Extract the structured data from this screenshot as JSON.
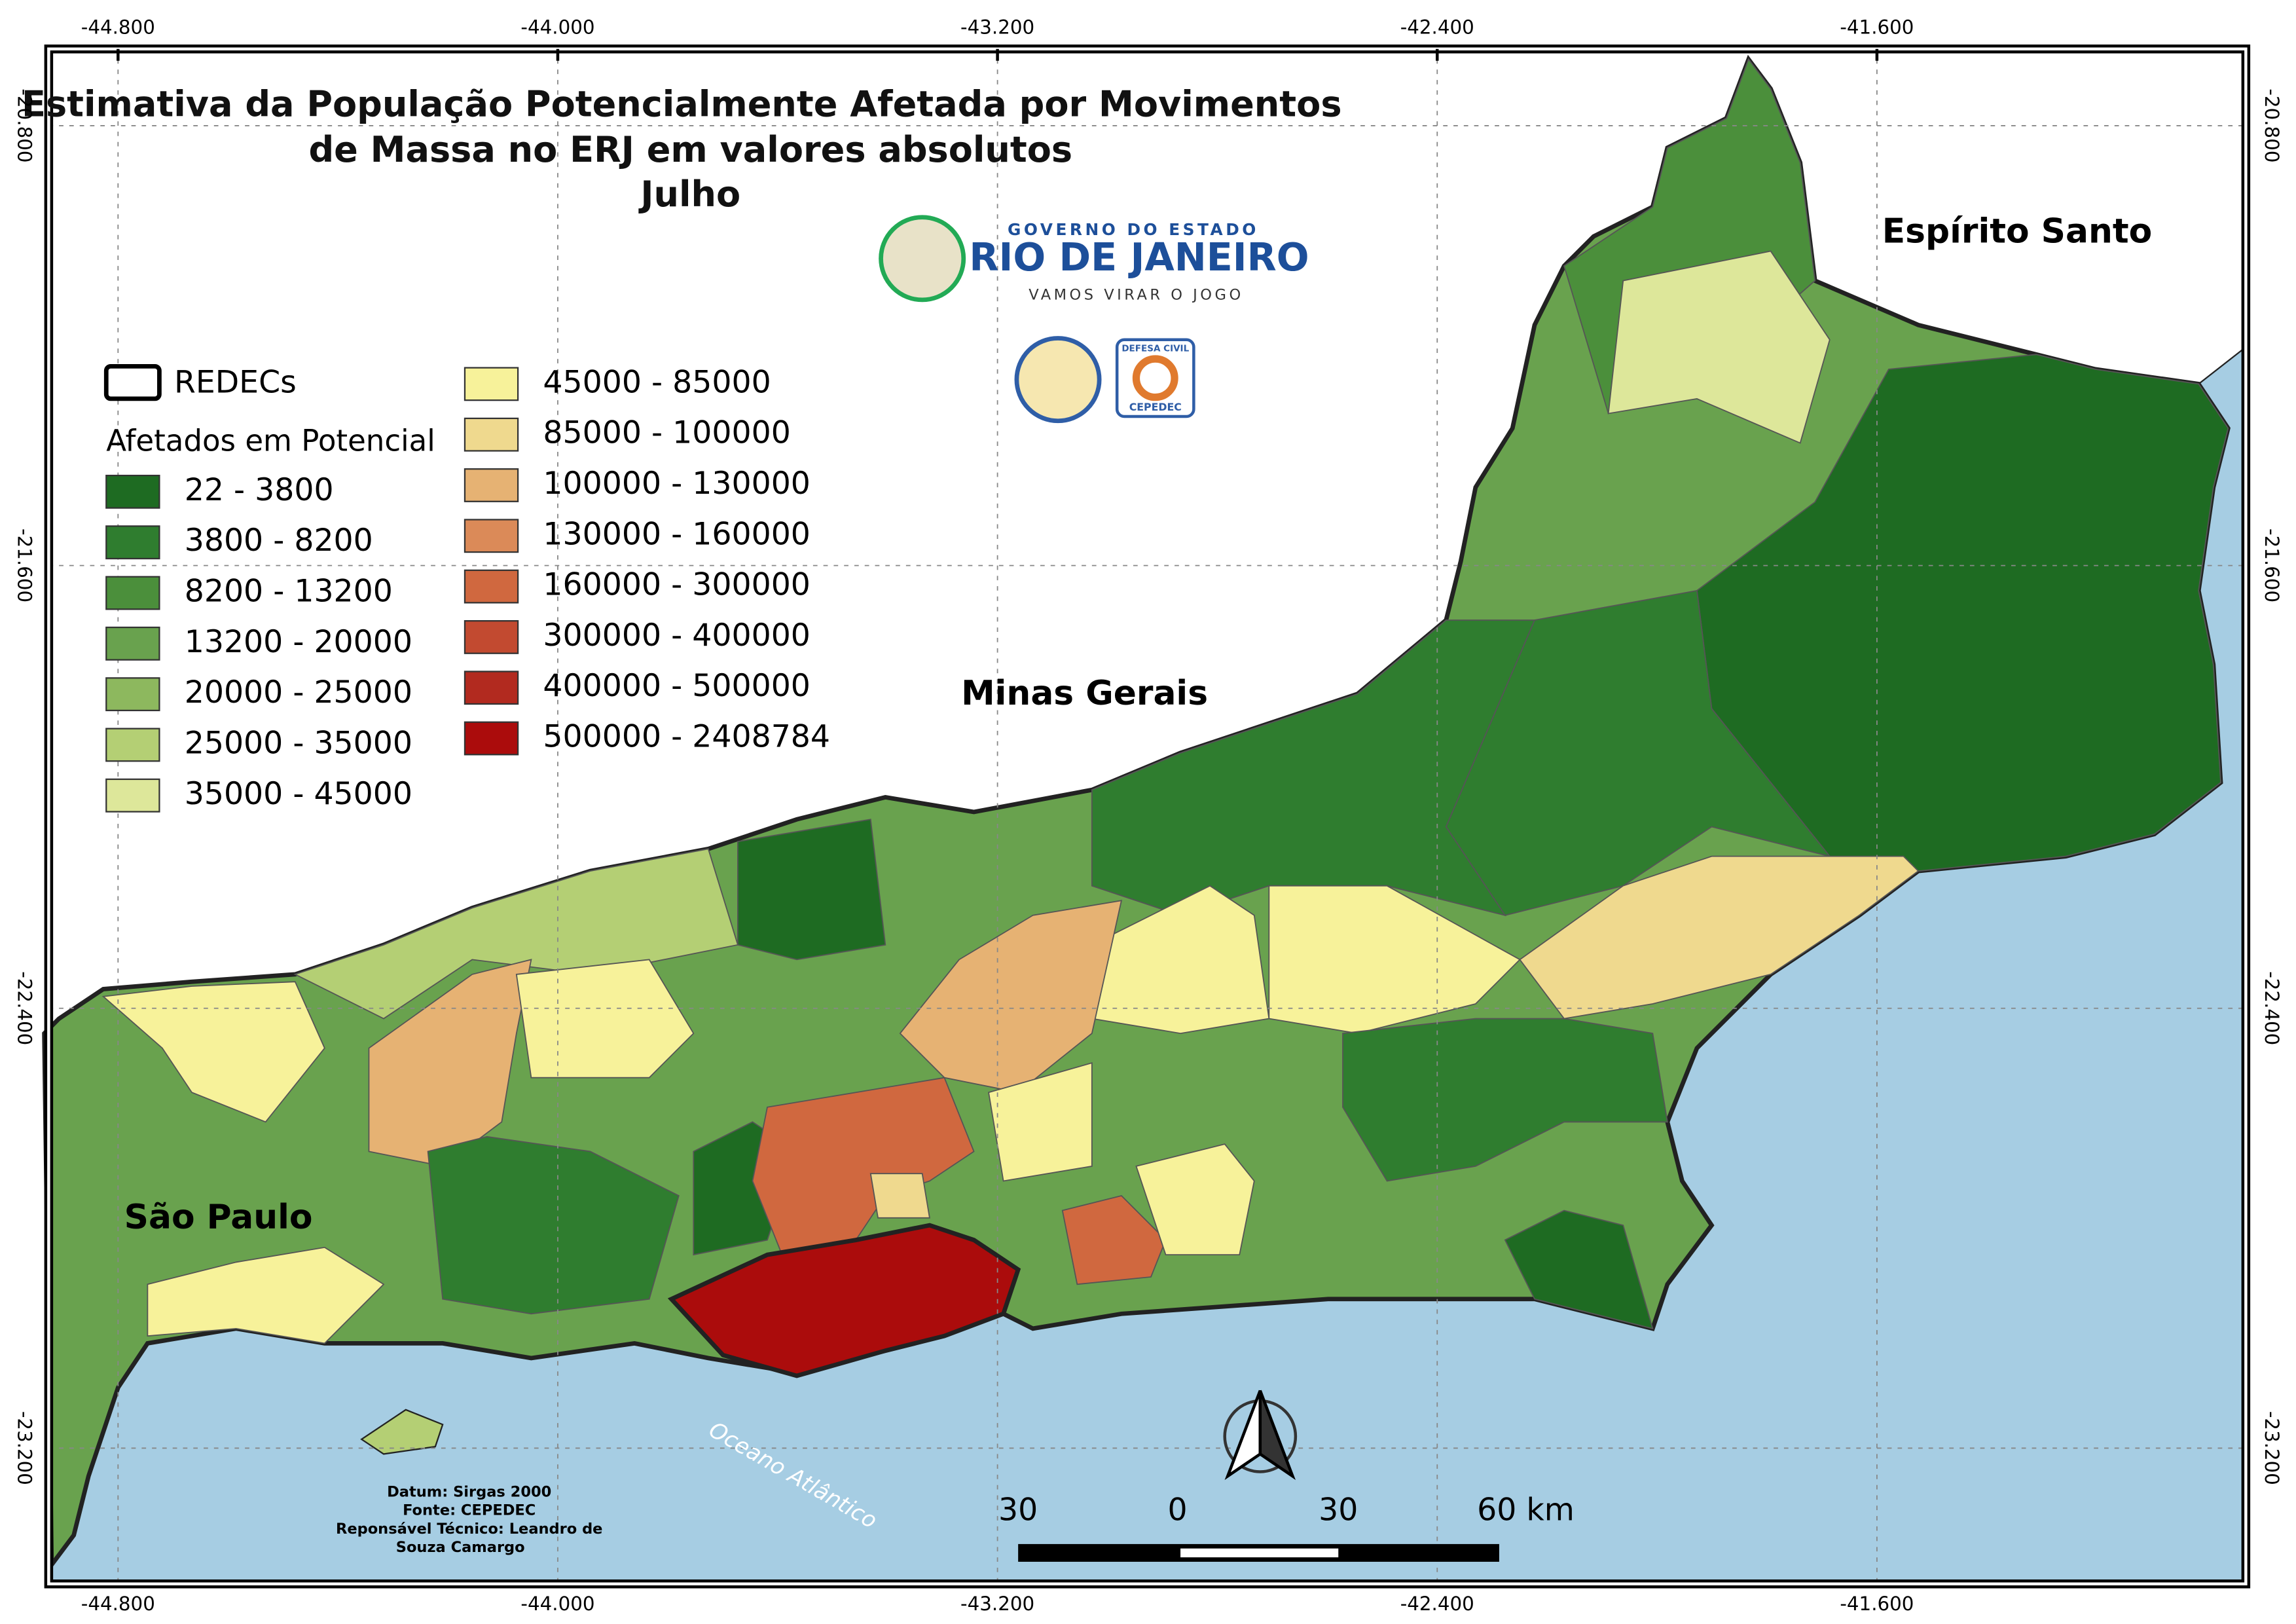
{
  "header": {
    "title_lines": [
      "Estimativa da População Potencialmente Afetada por Movimentos",
      "de Massa no ERJ em valores absolutos",
      "Julho"
    ]
  },
  "logos": {
    "gov_top": "GOVERNO DO ESTADO",
    "gov_main": "RIO DE JANEIRO",
    "gov_slogan": "VAMOS VIRAR O JOGO",
    "defesa": "DEFESA CIVIL",
    "cepedec": "CEPEDEC"
  },
  "legend": {
    "boundary": "REDECs",
    "heading": "Afetados em Potencial",
    "classes": [
      {
        "label": "22 - 3800",
        "color": "#1e6b22"
      },
      {
        "label": "3800 - 8200",
        "color": "#2f7d2f"
      },
      {
        "label": "8200 - 13200",
        "color": "#4b8f3b"
      },
      {
        "label": "13200 - 20000",
        "color": "#69a24e"
      },
      {
        "label": "20000 - 25000",
        "color": "#8db85e"
      },
      {
        "label": "25000 - 35000",
        "color": "#b4cf74"
      },
      {
        "label": "35000 - 45000",
        "color": "#dde79a"
      },
      {
        "label": "45000 - 85000",
        "color": "#f7f29a"
      },
      {
        "label": "85000 - 100000",
        "color": "#efd98e"
      },
      {
        "label": "100000 - 130000",
        "color": "#e6b273"
      },
      {
        "label": "130000 - 160000",
        "color": "#db8a58"
      },
      {
        "label": "160000 - 300000",
        "color": "#d0683f"
      },
      {
        "label": "300000 - 400000",
        "color": "#c24a30"
      },
      {
        "label": "400000 - 500000",
        "color": "#b22a1f"
      },
      {
        "label": "500000 - 2408784",
        "color": "#ab0c0c"
      }
    ]
  },
  "coordinates": {
    "longitudes": [
      "-44.800",
      "-44.000",
      "-43.200",
      "-42.400",
      "-41.600"
    ],
    "latitudes": [
      "-20.800",
      "-21.600",
      "-22.400",
      "-23.200"
    ]
  },
  "places": {
    "es": "Espírito Santo",
    "mg": "Minas Gerais",
    "sp": "São Paulo",
    "ocean": "Oceano Atlântico"
  },
  "credits": [
    "Datum: Sirgas 2000",
    "Fonte: CEPEDEC",
    "Reponsável Técnico: Leandro de",
    "Souza Camargo"
  ],
  "scale_bar": [
    "30",
    "0",
    "30",
    "60 km"
  ]
}
